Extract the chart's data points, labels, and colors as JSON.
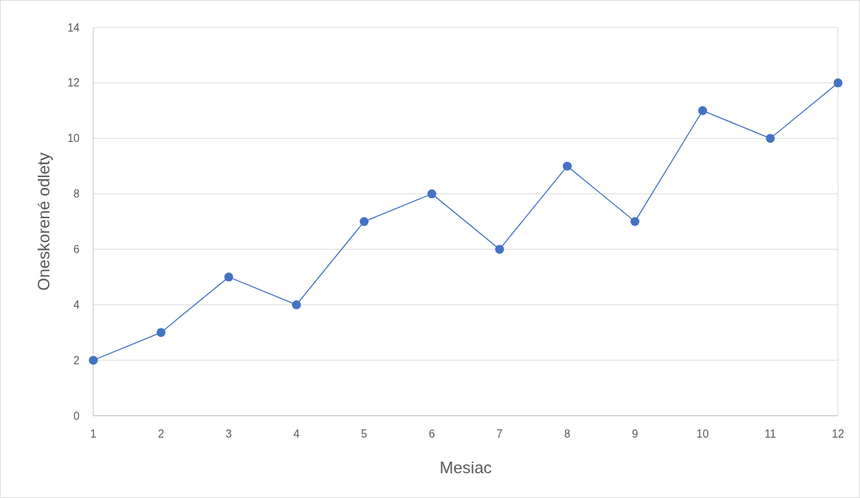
{
  "chart_data": {
    "type": "line",
    "xlabel": "Mesiac",
    "ylabel": "Oneskorené odlety",
    "x": [
      1,
      2,
      3,
      4,
      5,
      6,
      7,
      8,
      9,
      10,
      11,
      12
    ],
    "series": [
      {
        "color": "#4472c4",
        "values": [
          2,
          3,
          5,
          4,
          7,
          8,
          6,
          9,
          7,
          11,
          10,
          12
        ]
      }
    ],
    "xlim": [
      1,
      12
    ],
    "xticks": [
      1,
      2,
      3,
      4,
      5,
      6,
      7,
      8,
      9,
      10,
      11,
      12
    ],
    "ylim": [
      0,
      14
    ],
    "yticks": [
      0,
      2,
      4,
      6,
      8,
      10,
      12,
      14
    ],
    "grid": "y",
    "marker": "circle",
    "line_style": "solid"
  }
}
